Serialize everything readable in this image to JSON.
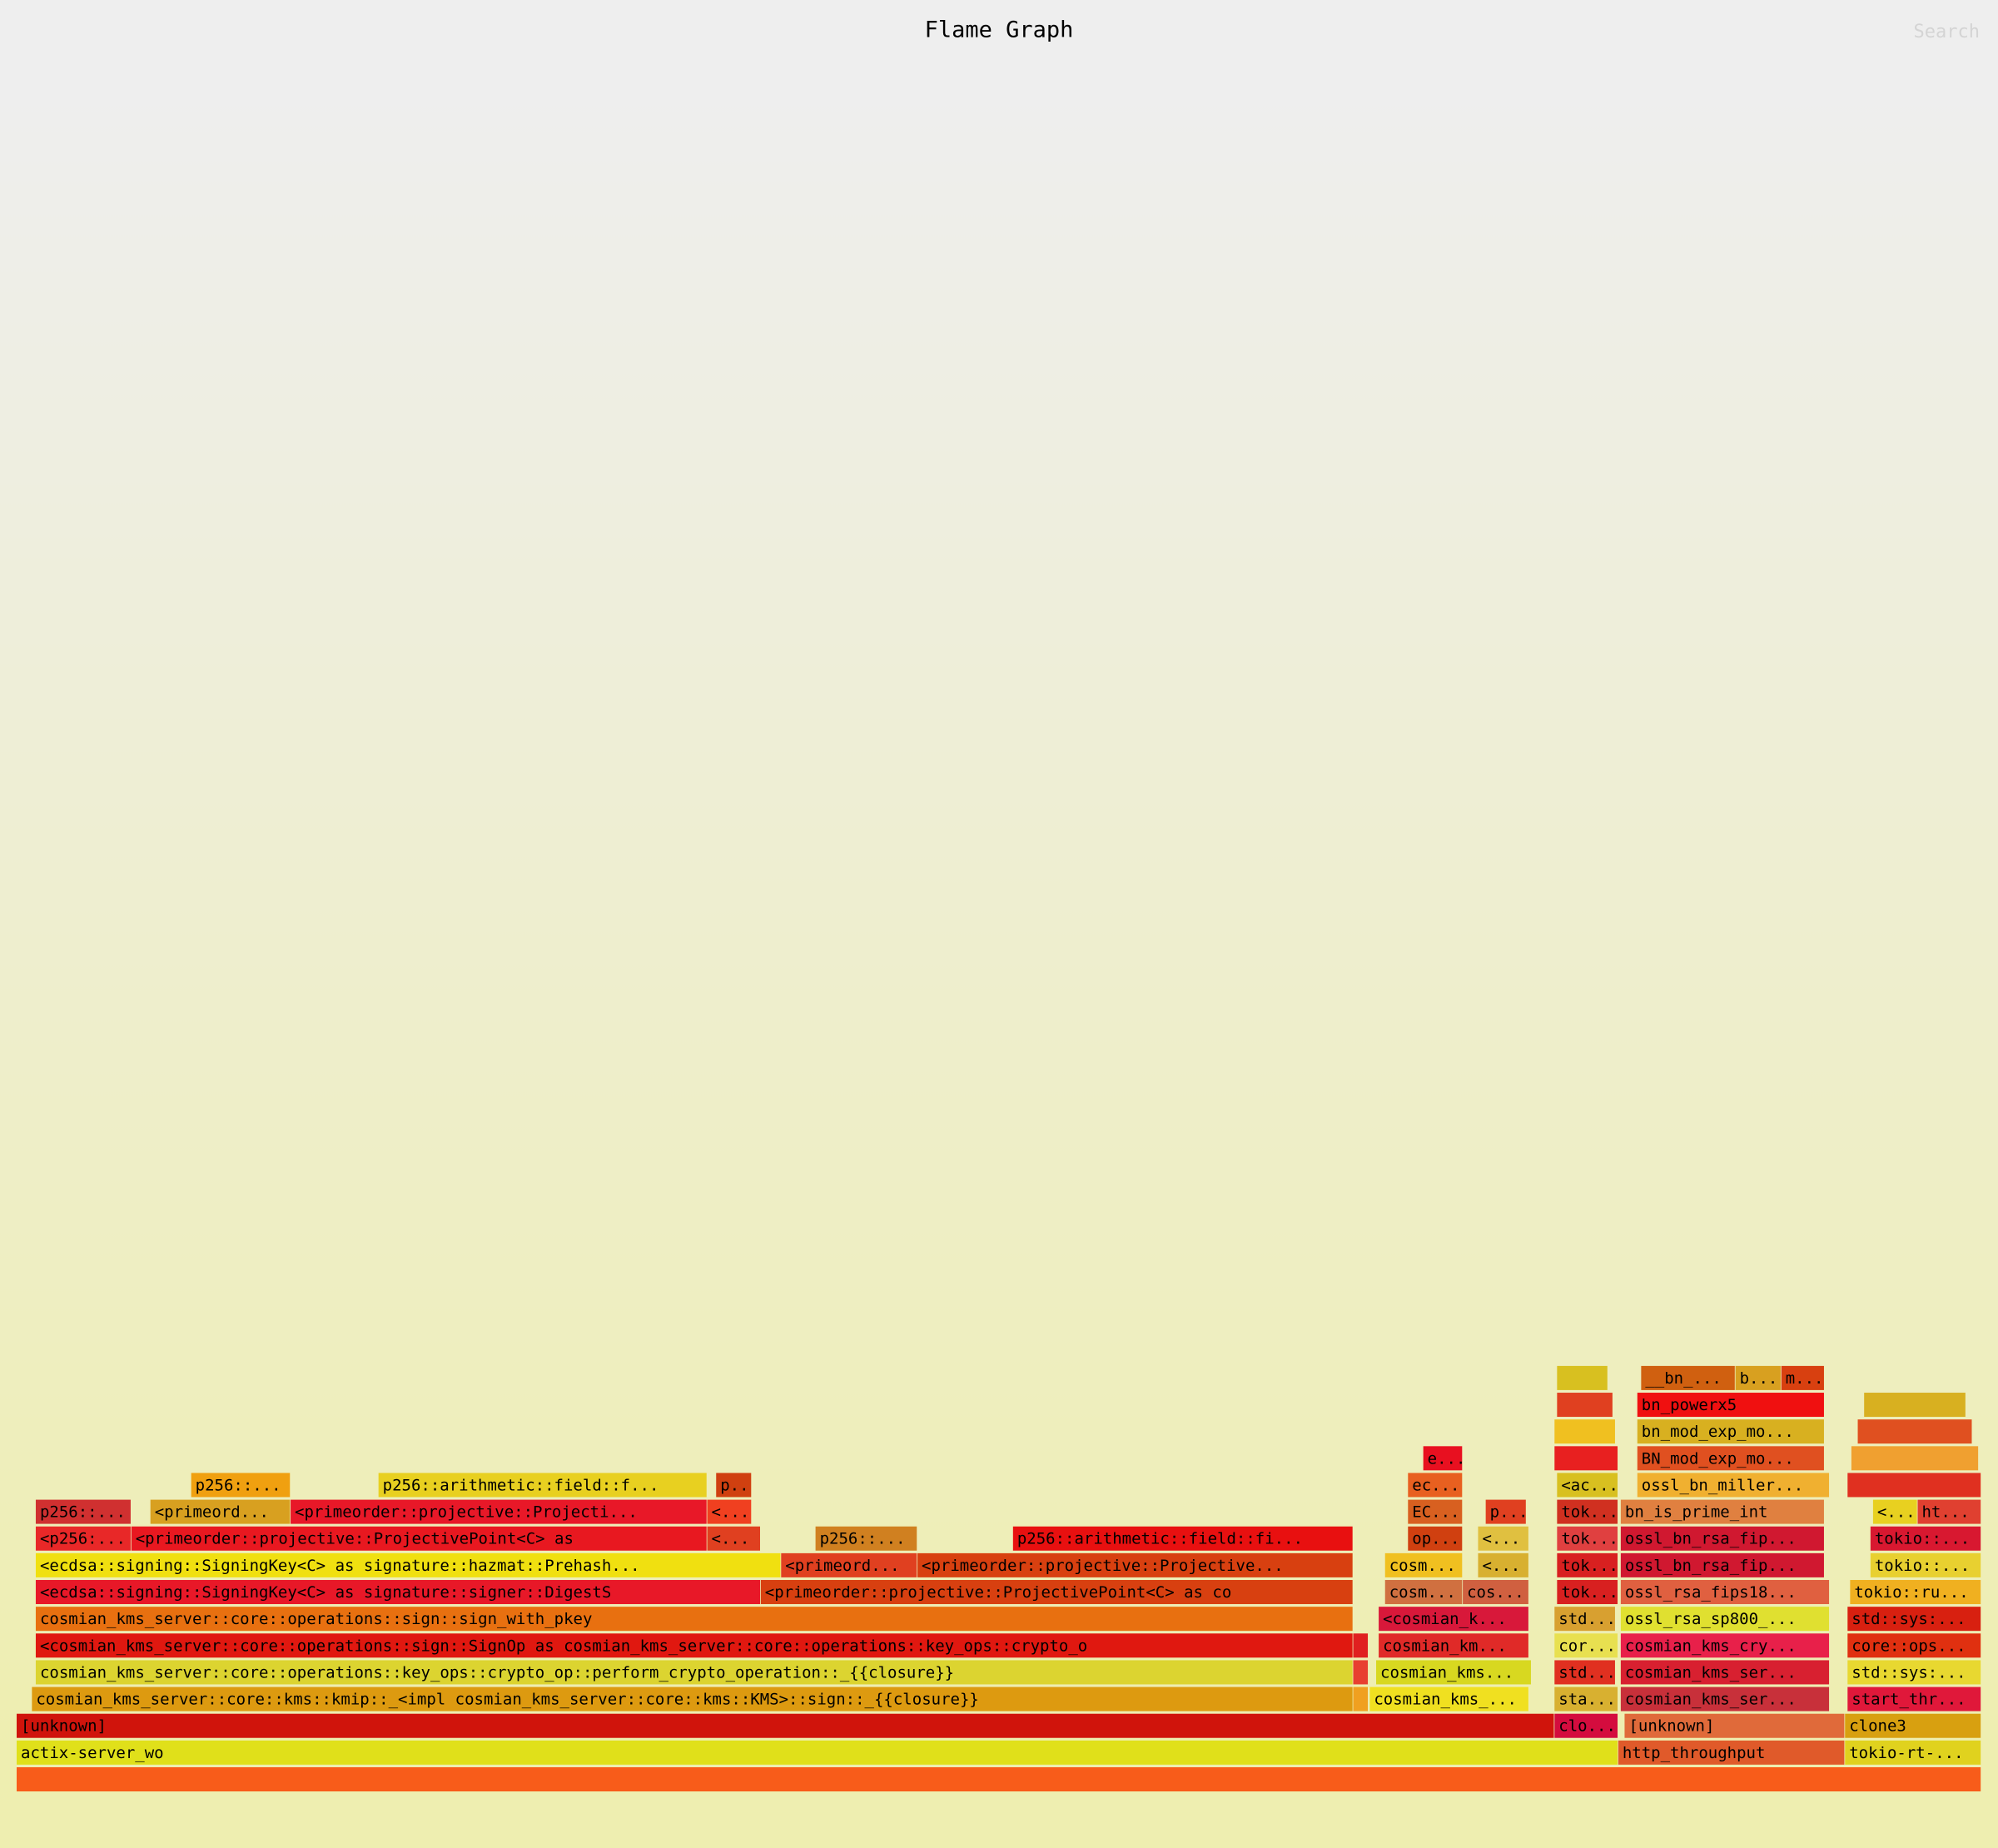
{
  "chart_data": {
    "type": "flame",
    "title": "Flame Graph",
    "search": "Search",
    "frames": [
      {
        "name": null,
        "start": 0,
        "value": 1542,
        "depth": 0,
        "color": "#f85c1a"
      },
      {
        "name": "actix-server_wo",
        "start": 0,
        "value": 1257,
        "depth": 1,
        "color": "#e0e01a"
      },
      {
        "name": "http_throughput",
        "start": 1257,
        "value": 178,
        "depth": 1,
        "color": "#e05a2a"
      },
      {
        "name": "tokio-rt-...",
        "start": 1435,
        "value": 107,
        "depth": 1,
        "color": "#e0d21e"
      },
      {
        "name": "[unknown]",
        "start": 0,
        "value": 1207,
        "depth": 2,
        "color": "#d0140c"
      },
      {
        "name": "clo...",
        "start": 1207,
        "value": 50,
        "depth": 2,
        "color": "#d40c3e"
      },
      {
        "name": "[unknown]",
        "start": 1262,
        "value": 173,
        "depth": 2,
        "color": "#e06a3a"
      },
      {
        "name": "clone3",
        "start": 1435,
        "value": 107,
        "depth": 2,
        "color": "#d8a010"
      },
      {
        "name": "cosmian_kms_server::core::kms::kmip::_<impl cosmian_kms_server::core::kms::KMS>::sign::_{{closure}}",
        "start": 12,
        "value": 1037,
        "depth": 3,
        "color": "#dd9a10"
      },
      {
        "name": "cosmian_kms_...",
        "start": 1062,
        "value": 125,
        "depth": 3,
        "color": "#f0e020"
      },
      {
        "name": "sta...",
        "start": 1207,
        "value": 50,
        "depth": 3,
        "color": "#d8b030"
      },
      {
        "name": "cosmian_kms_ser...",
        "start": 1259,
        "value": 164,
        "depth": 3,
        "color": "#c8303a"
      },
      {
        "name": "start_thr...",
        "start": 1437,
        "value": 105,
        "depth": 3,
        "color": "#e0183a"
      },
      {
        "name": "cosmian_kms_server::core::operations::key_ops::crypto_op::perform_crypto_operation::_{{closure}}",
        "start": 15,
        "value": 1034,
        "depth": 4,
        "color": "#dcd430"
      },
      {
        "name": "cosmian_kms...",
        "start": 1067,
        "value": 122,
        "depth": 4,
        "color": "#d8d820"
      },
      {
        "name": "std...",
        "start": 1207,
        "value": 48,
        "depth": 4,
        "color": "#e03020"
      },
      {
        "name": "cosmian_kms_ser...",
        "start": 1259,
        "value": 164,
        "depth": 4,
        "color": "#d82030"
      },
      {
        "name": "std::sys:...",
        "start": 1437,
        "value": 105,
        "depth": 4,
        "color": "#e8d830"
      },
      {
        "name": "<cosmian_kms_server::core::operations::sign::SignOp as cosmian_kms_server::core::operations::key_ops::crypto_o",
        "start": 15,
        "value": 1034,
        "depth": 5,
        "color": "#e01810"
      },
      {
        "name": "cosmian_km...",
        "start": 1069,
        "value": 118,
        "depth": 5,
        "color": "#e02a28"
      },
      {
        "name": "cor...",
        "start": 1207,
        "value": 50,
        "depth": 5,
        "color": "#e8e050"
      },
      {
        "name": "cosmian_kms_cry...",
        "start": 1259,
        "value": 164,
        "depth": 5,
        "color": "#e8204a"
      },
      {
        "name": "core::ops...",
        "start": 1437,
        "value": 105,
        "depth": 5,
        "color": "#e03010"
      },
      {
        "name": "cosmian_kms_server::core::operations::sign::sign_with_pkey",
        "start": 15,
        "value": 1034,
        "depth": 6,
        "color": "#e87010"
      },
      {
        "name": "<cosmian_k...",
        "start": 1069,
        "value": 118,
        "depth": 6,
        "color": "#d8183a"
      },
      {
        "name": "std...",
        "start": 1207,
        "value": 48,
        "depth": 6,
        "color": "#d8a030"
      },
      {
        "name": "ossl_rsa_sp800_...",
        "start": 1259,
        "value": 164,
        "depth": 6,
        "color": "#e0e030"
      },
      {
        "name": "std::sys:...",
        "start": 1437,
        "value": 105,
        "depth": 6,
        "color": "#d82010"
      },
      {
        "name": "<ecdsa::signing::SigningKey<C> as signature::signer::DigestS",
        "start": 15,
        "value": 569,
        "depth": 7,
        "color": "#e81828"
      },
      {
        "name": "<primeorder::projective::ProjectivePoint<C> as co",
        "start": 584,
        "value": 465,
        "depth": 7,
        "color": "#d84010"
      },
      {
        "name": "cosm...",
        "start": 1074,
        "value": 61,
        "depth": 7,
        "color": "#d07040"
      },
      {
        "name": "cos...",
        "start": 1135,
        "value": 52,
        "depth": 7,
        "color": "#d06040"
      },
      {
        "name": "tok...",
        "start": 1209,
        "value": 48,
        "depth": 7,
        "color": "#d82020"
      },
      {
        "name": "ossl_rsa_fips18...",
        "start": 1259,
        "value": 164,
        "depth": 7,
        "color": "#e06040"
      },
      {
        "name": "tokio::ru...",
        "start": 1439,
        "value": 103,
        "depth": 7,
        "color": "#f0b020"
      },
      {
        "name": "<ecdsa::signing::SigningKey<C> as signature::hazmat::Prehash...",
        "start": 15,
        "value": 585,
        "depth": 8,
        "color": "#f0e010"
      },
      {
        "name": "<primeord...",
        "start": 600,
        "value": 107,
        "depth": 8,
        "color": "#e04020"
      },
      {
        "name": "<primeorder::projective::Projective...",
        "start": 707,
        "value": 342,
        "depth": 8,
        "color": "#d84010"
      },
      {
        "name": "cosm...",
        "start": 1074,
        "value": 61,
        "depth": 8,
        "color": "#f0c020"
      },
      {
        "name": "<...",
        "start": 1147,
        "value": 40,
        "depth": 8,
        "color": "#d8b030"
      },
      {
        "name": "tok...",
        "start": 1209,
        "value": 48,
        "depth": 8,
        "color": "#d82020"
      },
      {
        "name": "ossl_bn_rsa_fip...",
        "start": 1259,
        "value": 160,
        "depth": 8,
        "color": "#d01830"
      },
      {
        "name": "tokio::...",
        "start": 1455,
        "value": 87,
        "depth": 8,
        "color": "#e8d030"
      },
      {
        "name": "<p256:...",
        "start": 15,
        "value": 75,
        "depth": 9,
        "color": "#e82828"
      },
      {
        "name": "<primeorder::projective::ProjectivePoint<C> as",
        "start": 90,
        "value": 452,
        "depth": 9,
        "color": "#e81820"
      },
      {
        "name": "<...",
        "start": 542,
        "value": 42,
        "depth": 9,
        "color": "#e04020"
      },
      {
        "name": "p256::...",
        "start": 627,
        "value": 80,
        "depth": 9,
        "color": "#d08020"
      },
      {
        "name": "p256::arithmetic::field::fi...",
        "start": 782,
        "value": 267,
        "depth": 9,
        "color": "#e81010"
      },
      {
        "name": "op...",
        "start": 1092,
        "value": 43,
        "depth": 9,
        "color": "#d04010"
      },
      {
        "name": "<...",
        "start": 1147,
        "value": 40,
        "depth": 9,
        "color": "#e0c040"
      },
      {
        "name": "tok...",
        "start": 1209,
        "value": 48,
        "depth": 9,
        "color": "#e04040"
      },
      {
        "name": "ossl_bn_rsa_fip...",
        "start": 1259,
        "value": 160,
        "depth": 9,
        "color": "#d01830"
      },
      {
        "name": "tokio::...",
        "start": 1455,
        "value": 87,
        "depth": 9,
        "color": "#d81830"
      },
      {
        "name": "p256::...",
        "start": 15,
        "value": 75,
        "depth": 10,
        "color": "#d03030"
      },
      {
        "name": "<primeord...",
        "start": 105,
        "value": 110,
        "depth": 10,
        "color": "#d8a020"
      },
      {
        "name": "<primeorder::projective::Projecti...",
        "start": 215,
        "value": 327,
        "depth": 10,
        "color": "#e81828"
      },
      {
        "name": "<...",
        "start": 542,
        "value": 35,
        "depth": 10,
        "color": "#f04020"
      },
      {
        "name": "EC...",
        "start": 1092,
        "value": 43,
        "depth": 10,
        "color": "#d86020"
      },
      {
        "name": "p...",
        "start": 1153,
        "value": 32,
        "depth": 10,
        "color": "#e04020"
      },
      {
        "name": "tok...",
        "start": 1209,
        "value": 48,
        "depth": 10,
        "color": "#d03020"
      },
      {
        "name": "bn_is_prime_int",
        "start": 1259,
        "value": 160,
        "depth": 10,
        "color": "#e08040"
      },
      {
        "name": "<...",
        "start": 1457,
        "value": 35,
        "depth": 10,
        "color": "#e8d020"
      },
      {
        "name": "ht...",
        "start": 1492,
        "value": 50,
        "depth": 10,
        "color": "#e04030"
      },
      {
        "name": "p256::...",
        "start": 137,
        "value": 78,
        "depth": 11,
        "color": "#f0a010"
      },
      {
        "name": "p256::arithmetic::field::f...",
        "start": 284,
        "value": 258,
        "depth": 11,
        "color": "#e8d020"
      },
      {
        "name": "p...",
        "start": 549,
        "value": 28,
        "depth": 11,
        "color": "#d04010"
      },
      {
        "name": "ec...",
        "start": 1092,
        "value": 43,
        "depth": 11,
        "color": "#e86020"
      },
      {
        "name": "<ac...",
        "start": 1209,
        "value": 48,
        "depth": 11,
        "color": "#d8c020"
      },
      {
        "name": "ossl_bn_miller...",
        "start": 1272,
        "value": 151,
        "depth": 11,
        "color": "#f0b030"
      },
      {
        "name": "e...",
        "start": 1104,
        "value": 31,
        "depth": 12,
        "color": "#e81020"
      },
      {
        "name": "BN_mod_exp_mo...",
        "start": 1272,
        "value": 147,
        "depth": 12,
        "color": "#e05020"
      },
      {
        "name": "bn_mod_exp_mo...",
        "start": 1272,
        "value": 147,
        "depth": 13,
        "color": "#d8b020"
      },
      {
        "name": "bn_powerx5",
        "start": 1272,
        "value": 147,
        "depth": 14,
        "color": "#f01010"
      },
      {
        "name": "__bn_...",
        "start": 1275,
        "value": 74,
        "depth": 15,
        "color": "#d06010"
      },
      {
        "name": "b...",
        "start": 1349,
        "value": 36,
        "depth": 15,
        "color": "#d8a020"
      },
      {
        "name": "m...",
        "start": 1385,
        "value": 34,
        "depth": 15,
        "color": "#d84010"
      },
      {
        "name": null,
        "start": 1207,
        "value": 50,
        "depth": 12,
        "color": "#e82020"
      },
      {
        "name": null,
        "start": 1207,
        "value": 48,
        "depth": 13,
        "color": "#f0c020"
      },
      {
        "name": null,
        "start": 1209,
        "value": 44,
        "depth": 14,
        "color": "#e04020"
      },
      {
        "name": null,
        "start": 1209,
        "value": 40,
        "depth": 15,
        "color": "#d8c020"
      },
      {
        "name": null,
        "start": 1437,
        "value": 105,
        "depth": 11,
        "color": "#e03020"
      },
      {
        "name": null,
        "start": 1440,
        "value": 100,
        "depth": 12,
        "color": "#f0a030"
      },
      {
        "name": null,
        "start": 1445,
        "value": 90,
        "depth": 13,
        "color": "#e05020"
      },
      {
        "name": null,
        "start": 1450,
        "value": 80,
        "depth": 14,
        "color": "#d8b020"
      },
      {
        "name": null,
        "start": 1049,
        "value": 12,
        "depth": 3,
        "color": "#f0a020"
      },
      {
        "name": null,
        "start": 1049,
        "value": 12,
        "depth": 4,
        "color": "#e84030"
      },
      {
        "name": null,
        "start": 1049,
        "value": 12,
        "depth": 5,
        "color": "#e02020"
      }
    ]
  }
}
